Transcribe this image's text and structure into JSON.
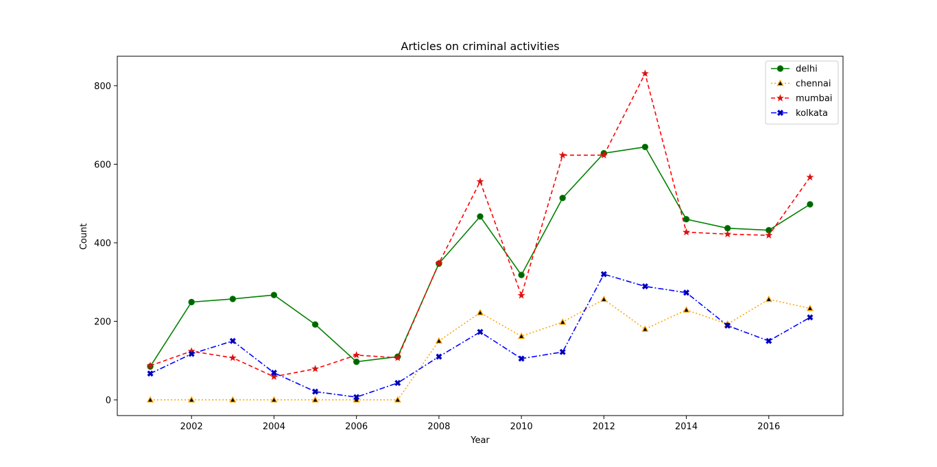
{
  "chart_data": {
    "type": "line",
    "title": "Articles on criminal activities",
    "xlabel": "Year",
    "ylabel": "Count",
    "x": [
      2001,
      2002,
      2003,
      2004,
      2005,
      2006,
      2007,
      2008,
      2009,
      2010,
      2011,
      2012,
      2013,
      2014,
      2015,
      2016,
      2017
    ],
    "xlim": [
      2000.2,
      2017.8
    ],
    "ylim": [
      -40,
      875
    ],
    "xticks": [
      2002,
      2004,
      2006,
      2008,
      2010,
      2012,
      2014,
      2016
    ],
    "yticks": [
      0,
      200,
      400,
      600,
      800
    ],
    "legend_position": "top-right",
    "grid": false,
    "series": [
      {
        "name": "delhi",
        "color": "#008000",
        "marker": "circle",
        "marker_fill": "#006400",
        "line_style": "solid",
        "values": [
          85,
          249,
          257,
          267,
          192,
          97,
          110,
          347,
          467,
          318,
          514,
          628,
          644,
          460,
          437,
          432,
          498
        ]
      },
      {
        "name": "chennai",
        "color": "#ffa500",
        "marker": "triangle",
        "marker_fill": "#000000",
        "line_style": "dotted",
        "values": [
          0,
          0,
          0,
          0,
          0,
          0,
          0,
          150,
          222,
          162,
          198,
          256,
          180,
          229,
          193,
          256,
          233
        ]
      },
      {
        "name": "mumbai",
        "color": "#ff0000",
        "marker": "star",
        "marker_fill": "#b22222",
        "line_style": "dashed",
        "values": [
          87,
          124,
          107,
          59,
          79,
          114,
          107,
          348,
          556,
          266,
          623,
          623,
          831,
          427,
          422,
          419,
          567
        ]
      },
      {
        "name": "kolkata",
        "color": "#0000ff",
        "marker": "x-filled",
        "marker_fill": "#000080",
        "line_style": "dashdot",
        "values": [
          67,
          117,
          150,
          69,
          21,
          7,
          43,
          110,
          173,
          105,
          122,
          320,
          289,
          273,
          189,
          150,
          210
        ]
      }
    ]
  }
}
